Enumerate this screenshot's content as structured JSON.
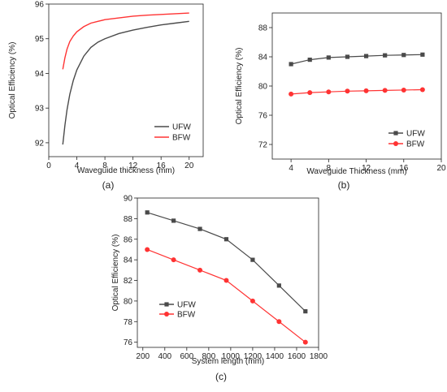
{
  "colors": {
    "ufw": "#4a4a4a",
    "bfw": "#ff3333"
  },
  "chart_data": [
    {
      "panel_label": "(a)",
      "type": "line",
      "xlabel": "Waveguide thickness (mm)",
      "ylabel": "Optical Efficiency (%)",
      "xlim": [
        0,
        22
      ],
      "ylim": [
        91.6,
        96
      ],
      "xticks": [
        0,
        4,
        8,
        12,
        16,
        20
      ],
      "yticks": [
        92,
        93,
        94,
        95,
        96
      ],
      "grid": false,
      "legend": "bottom-right",
      "markers": false,
      "series": [
        {
          "name": "UFW",
          "color_key": "ufw",
          "x": [
            2,
            2.3,
            2.6,
            3,
            3.5,
            4,
            5,
            6,
            7,
            8,
            10,
            12,
            14,
            16,
            18,
            20
          ],
          "y": [
            91.95,
            92.5,
            92.95,
            93.4,
            93.8,
            94.1,
            94.5,
            94.75,
            94.9,
            95.0,
            95.15,
            95.25,
            95.33,
            95.4,
            95.45,
            95.5
          ]
        },
        {
          "name": "BFW",
          "color_key": "bfw",
          "x": [
            2,
            2.3,
            2.6,
            3,
            3.5,
            4,
            5,
            6,
            7,
            8,
            10,
            12,
            14,
            16,
            18,
            20
          ],
          "y": [
            94.12,
            94.45,
            94.7,
            94.92,
            95.08,
            95.2,
            95.35,
            95.45,
            95.5,
            95.55,
            95.6,
            95.65,
            95.68,
            95.7,
            95.72,
            95.74
          ]
        }
      ]
    },
    {
      "panel_label": "(b)",
      "type": "line",
      "xlabel": "Waveguide Thickness (mm)",
      "ylabel": "Optical Efficiency (%)",
      "xlim": [
        2,
        20
      ],
      "ylim": [
        70,
        90
      ],
      "xticks": [
        4,
        8,
        12,
        16,
        20
      ],
      "yticks": [
        72,
        76,
        80,
        84,
        88
      ],
      "grid": false,
      "legend": "bottom-right",
      "markers": true,
      "series": [
        {
          "name": "UFW",
          "color_key": "ufw",
          "marker": "square",
          "x": [
            4,
            6,
            8,
            10,
            12,
            14,
            16,
            18
          ],
          "y": [
            83.0,
            83.6,
            83.9,
            84.0,
            84.1,
            84.2,
            84.25,
            84.3
          ]
        },
        {
          "name": "BFW",
          "color_key": "bfw",
          "marker": "circle",
          "x": [
            4,
            6,
            8,
            10,
            12,
            14,
            16,
            18
          ],
          "y": [
            78.9,
            79.1,
            79.2,
            79.3,
            79.35,
            79.4,
            79.45,
            79.5
          ]
        }
      ]
    },
    {
      "panel_label": "(c)",
      "type": "line",
      "xlabel": "System length (mm)",
      "ylabel": "Optical Efficiency (%)",
      "xlim": [
        150,
        1800
      ],
      "ylim": [
        75.5,
        90
      ],
      "xticks": [
        200,
        400,
        600,
        800,
        1000,
        1200,
        1400,
        1600,
        1800
      ],
      "yticks": [
        76,
        78,
        80,
        82,
        84,
        86,
        88,
        90
      ],
      "grid": false,
      "legend": "center-left",
      "markers": true,
      "series": [
        {
          "name": "UFW",
          "color_key": "ufw",
          "marker": "square",
          "x": [
            240,
            480,
            720,
            960,
            1200,
            1440,
            1680
          ],
          "y": [
            88.6,
            87.8,
            87.0,
            86.0,
            84.0,
            81.5,
            79.0
          ]
        },
        {
          "name": "BFW",
          "color_key": "bfw",
          "marker": "circle",
          "x": [
            240,
            480,
            720,
            960,
            1200,
            1440,
            1680
          ],
          "y": [
            85.0,
            84.0,
            83.0,
            82.0,
            80.0,
            78.0,
            76.0
          ]
        }
      ]
    }
  ]
}
